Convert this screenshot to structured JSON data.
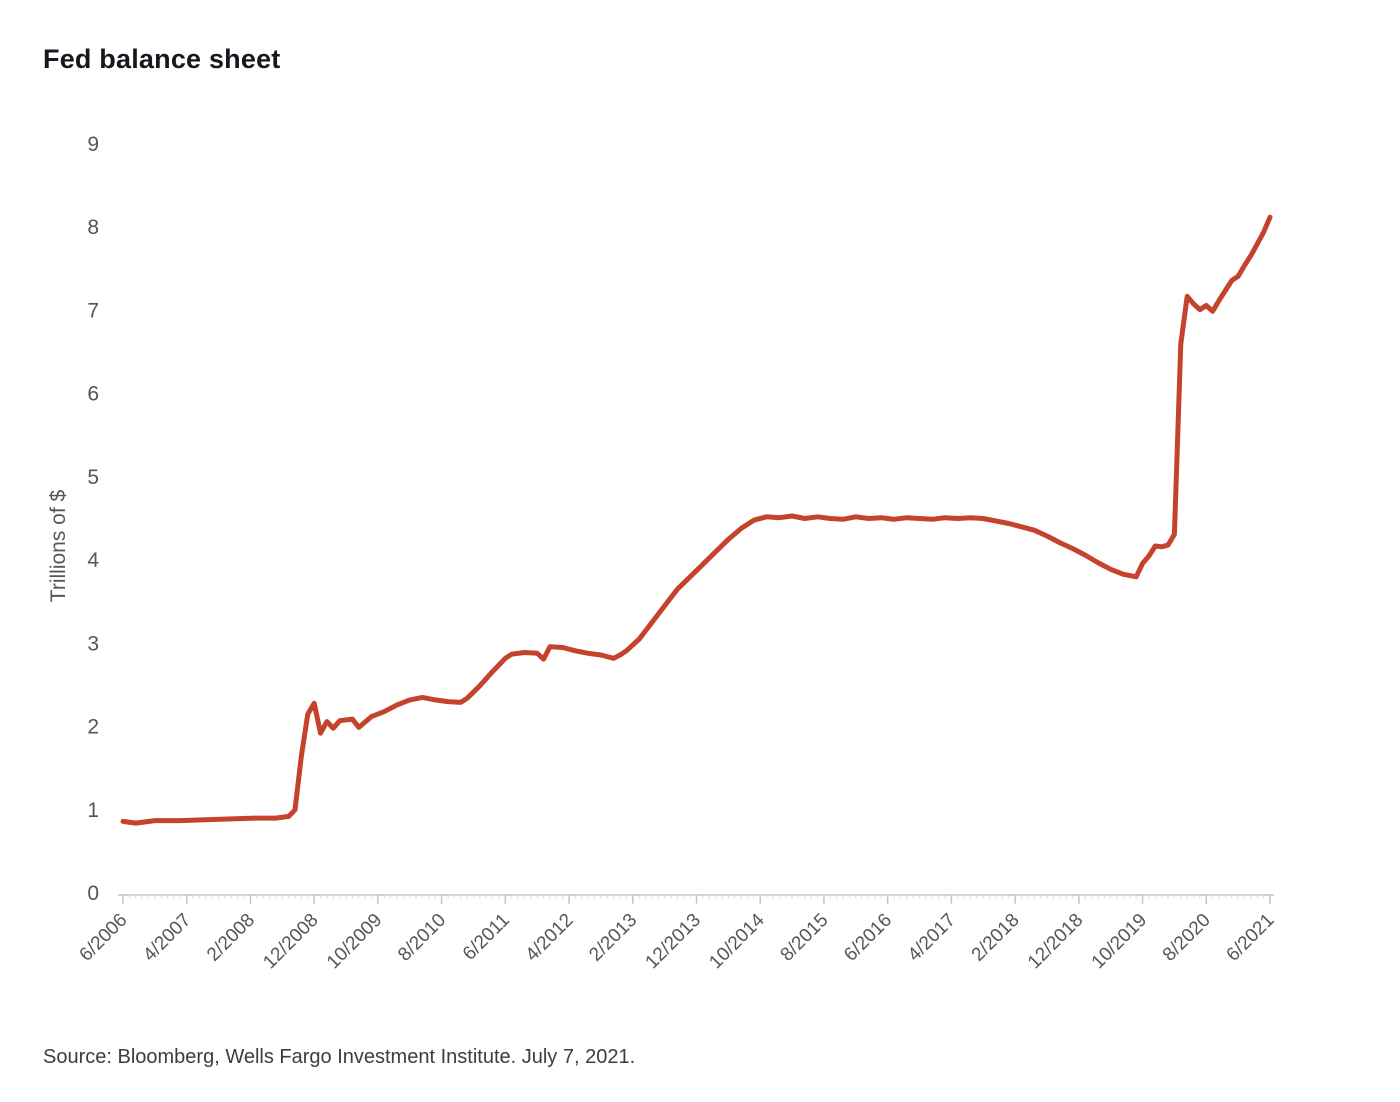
{
  "chart_data": {
    "type": "line",
    "title": "Fed balance sheet",
    "xlabel": "",
    "ylabel": "Trillions of $",
    "source_note": "Source: Bloomberg, Wells Fargo Investment Institute. July 7, 2021.",
    "ylim": [
      0,
      9
    ],
    "grid": false,
    "legend": false,
    "yticks": [
      0,
      1,
      2,
      3,
      4,
      5,
      6,
      7,
      8,
      9
    ],
    "xticks": [
      "6/2006",
      "4/2007",
      "2/2008",
      "12/2008",
      "10/2009",
      "8/2010",
      "6/2011",
      "4/2012",
      "2/2013",
      "12/2013",
      "10/2014",
      "8/2015",
      "6/2016",
      "4/2017",
      "2/2018",
      "12/2018",
      "10/2019",
      "8/2020",
      "6/2021"
    ],
    "colors": {
      "line": "#c5422c",
      "axis": "#c6c6c6",
      "minor": "#dcdcdc",
      "tick": "#55565c",
      "title": "#17171f",
      "source": "#3b3c47"
    },
    "series": [
      {
        "name": "Fed balance sheet (trillions of USD)",
        "points": [
          [
            "6/2006",
            0.86
          ],
          [
            "8/2006",
            0.84
          ],
          [
            "11/2006",
            0.87
          ],
          [
            "3/2007",
            0.87
          ],
          [
            "7/2007",
            0.88
          ],
          [
            "11/2007",
            0.89
          ],
          [
            "3/2008",
            0.9
          ],
          [
            "6/2008",
            0.9
          ],
          [
            "8/2008",
            0.92
          ],
          [
            "9/2008",
            1.0
          ],
          [
            "10/2008",
            1.65
          ],
          [
            "11/2008",
            2.15
          ],
          [
            "12/2008",
            2.28
          ],
          [
            "1/2009",
            1.92
          ],
          [
            "2/2009",
            2.06
          ],
          [
            "3/2009",
            1.98
          ],
          [
            "4/2009",
            2.07
          ],
          [
            "6/2009",
            2.09
          ],
          [
            "7/2009",
            1.99
          ],
          [
            "9/2009",
            2.12
          ],
          [
            "11/2009",
            2.18
          ],
          [
            "1/2010",
            2.26
          ],
          [
            "3/2010",
            2.32
          ],
          [
            "5/2010",
            2.35
          ],
          [
            "7/2010",
            2.32
          ],
          [
            "9/2010",
            2.3
          ],
          [
            "11/2010",
            2.29
          ],
          [
            "12/2010",
            2.34
          ],
          [
            "2/2011",
            2.49
          ],
          [
            "4/2011",
            2.66
          ],
          [
            "6/2011",
            2.82
          ],
          [
            "7/2011",
            2.87
          ],
          [
            "9/2011",
            2.89
          ],
          [
            "11/2011",
            2.88
          ],
          [
            "12/2011",
            2.81
          ],
          [
            "1/2012",
            2.96
          ],
          [
            "3/2012",
            2.95
          ],
          [
            "5/2012",
            2.91
          ],
          [
            "7/2012",
            2.88
          ],
          [
            "9/2012",
            2.86
          ],
          [
            "11/2012",
            2.82
          ],
          [
            "12/2012",
            2.86
          ],
          [
            "1/2013",
            2.91
          ],
          [
            "3/2013",
            3.05
          ],
          [
            "5/2013",
            3.25
          ],
          [
            "7/2013",
            3.45
          ],
          [
            "9/2013",
            3.65
          ],
          [
            "11/2013",
            3.8
          ],
          [
            "1/2014",
            3.95
          ],
          [
            "3/2014",
            4.1
          ],
          [
            "5/2014",
            4.25
          ],
          [
            "7/2014",
            4.38
          ],
          [
            "9/2014",
            4.48
          ],
          [
            "11/2014",
            4.52
          ],
          [
            "1/2015",
            4.51
          ],
          [
            "3/2015",
            4.53
          ],
          [
            "5/2015",
            4.5
          ],
          [
            "7/2015",
            4.52
          ],
          [
            "9/2015",
            4.5
          ],
          [
            "11/2015",
            4.49
          ],
          [
            "1/2016",
            4.52
          ],
          [
            "3/2016",
            4.5
          ],
          [
            "5/2016",
            4.51
          ],
          [
            "7/2016",
            4.49
          ],
          [
            "9/2016",
            4.51
          ],
          [
            "11/2016",
            4.5
          ],
          [
            "1/2017",
            4.49
          ],
          [
            "3/2017",
            4.51
          ],
          [
            "5/2017",
            4.5
          ],
          [
            "7/2017",
            4.51
          ],
          [
            "9/2017",
            4.5
          ],
          [
            "11/2017",
            4.47
          ],
          [
            "1/2018",
            4.44
          ],
          [
            "3/2018",
            4.4
          ],
          [
            "5/2018",
            4.36
          ],
          [
            "7/2018",
            4.29
          ],
          [
            "9/2018",
            4.21
          ],
          [
            "11/2018",
            4.14
          ],
          [
            "1/2019",
            4.06
          ],
          [
            "3/2019",
            3.97
          ],
          [
            "5/2019",
            3.89
          ],
          [
            "7/2019",
            3.83
          ],
          [
            "9/2019",
            3.8
          ],
          [
            "10/2019",
            3.96
          ],
          [
            "11/2019",
            4.05
          ],
          [
            "12/2019",
            4.17
          ],
          [
            "1/2020",
            4.16
          ],
          [
            "2/2020",
            4.18
          ],
          [
            "3/2020",
            4.31
          ],
          [
            "4/2020",
            6.6
          ],
          [
            "5/2020",
            7.17
          ],
          [
            "6/2020",
            7.08
          ],
          [
            "7/2020",
            7.01
          ],
          [
            "8/2020",
            7.06
          ],
          [
            "9/2020",
            6.99
          ],
          [
            "10/2020",
            7.12
          ],
          [
            "11/2020",
            7.24
          ],
          [
            "12/2020",
            7.36
          ],
          [
            "1/2021",
            7.41
          ],
          [
            "2/2021",
            7.54
          ],
          [
            "3/2021",
            7.66
          ],
          [
            "4/2021",
            7.8
          ],
          [
            "5/2021",
            7.94
          ],
          [
            "6/2021",
            8.12
          ]
        ]
      }
    ]
  }
}
